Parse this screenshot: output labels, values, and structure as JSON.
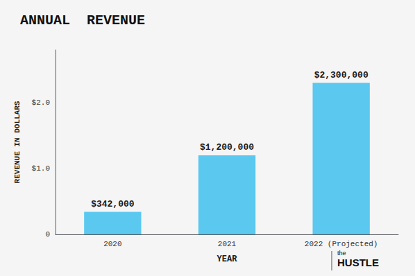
{
  "chart_data": {
    "type": "bar",
    "title": "ANNUAL  REVENUE",
    "xlabel": "YEAR",
    "ylabel": "REVENUE IN DOLLARS",
    "categories": [
      "2020",
      "2021",
      "2022 (Projected)"
    ],
    "values": [
      342000,
      1200000,
      2300000
    ],
    "value_labels": [
      "$342,000",
      "$1,200,000",
      "$2,300,000"
    ],
    "data_labels": true,
    "color": "#5BC8F0",
    "ylim": [
      0,
      2800000
    ],
    "yticks": [
      0,
      {
        "value": 1000000,
        "label": "$1.0"
      },
      {
        "value": 2000000,
        "label": "$2.0"
      }
    ],
    "grid": false,
    "annotations": [
      "the",
      "HUSTLE"
    ]
  }
}
